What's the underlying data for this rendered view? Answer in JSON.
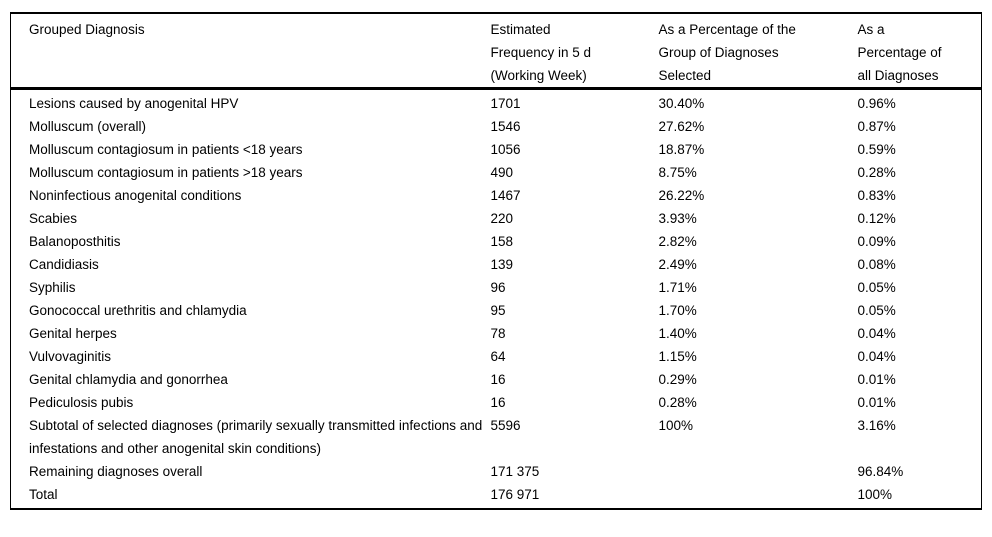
{
  "colors": {
    "background": "#ffffff",
    "text": "#000000",
    "border": "#000000"
  },
  "table": {
    "columns": [
      "Grouped Diagnosis",
      "Estimated\nFrequency in 5 d\n(Working Week)",
      "As a Percentage of the\nGroup of Diagnoses\nSelected",
      "As a\nPercentage of\nall Diagnoses"
    ],
    "rows": [
      [
        "Lesions caused by anogenital HPV",
        "1701",
        "30.40%",
        "0.96%"
      ],
      [
        "Molluscum (overall)",
        "1546",
        "27.62%",
        "0.87%"
      ],
      [
        "Molluscum contagiosum in patients <18 years",
        "1056",
        "18.87%",
        "0.59%"
      ],
      [
        "Molluscum contagiosum in patients >18 years",
        "490",
        "8.75%",
        "0.28%"
      ],
      [
        "Noninfectious anogenital conditions",
        "1467",
        "26.22%",
        "0.83%"
      ],
      [
        "Scabies",
        "220",
        "3.93%",
        "0.12%"
      ],
      [
        "Balanoposthitis",
        "158",
        "2.82%",
        "0.09%"
      ],
      [
        "Candidiasis",
        "139",
        "2.49%",
        "0.08%"
      ],
      [
        "Syphilis",
        "96",
        "1.71%",
        "0.05%"
      ],
      [
        "Gonococcal urethritis and chlamydia",
        "95",
        "1.70%",
        "0.05%"
      ],
      [
        "Genital herpes",
        "78",
        "1.40%",
        "0.04%"
      ],
      [
        "Vulvovaginitis",
        "64",
        "1.15%",
        "0.04%"
      ],
      [
        "Genital chlamydia and gonorrhea",
        "16",
        "0.29%",
        "0.01%"
      ],
      [
        "Pediculosis pubis",
        "16",
        "0.28%",
        "0.01%"
      ],
      [
        "Subtotal of selected diagnoses (primarily sexually transmitted infections and infestations and other anogenital skin conditions)",
        "5596",
        "100%",
        "3.16%"
      ],
      [
        "Remaining diagnoses overall",
        "171 375",
        "",
        "96.84%"
      ],
      [
        "Total",
        "176 971",
        "",
        "100%"
      ]
    ]
  }
}
